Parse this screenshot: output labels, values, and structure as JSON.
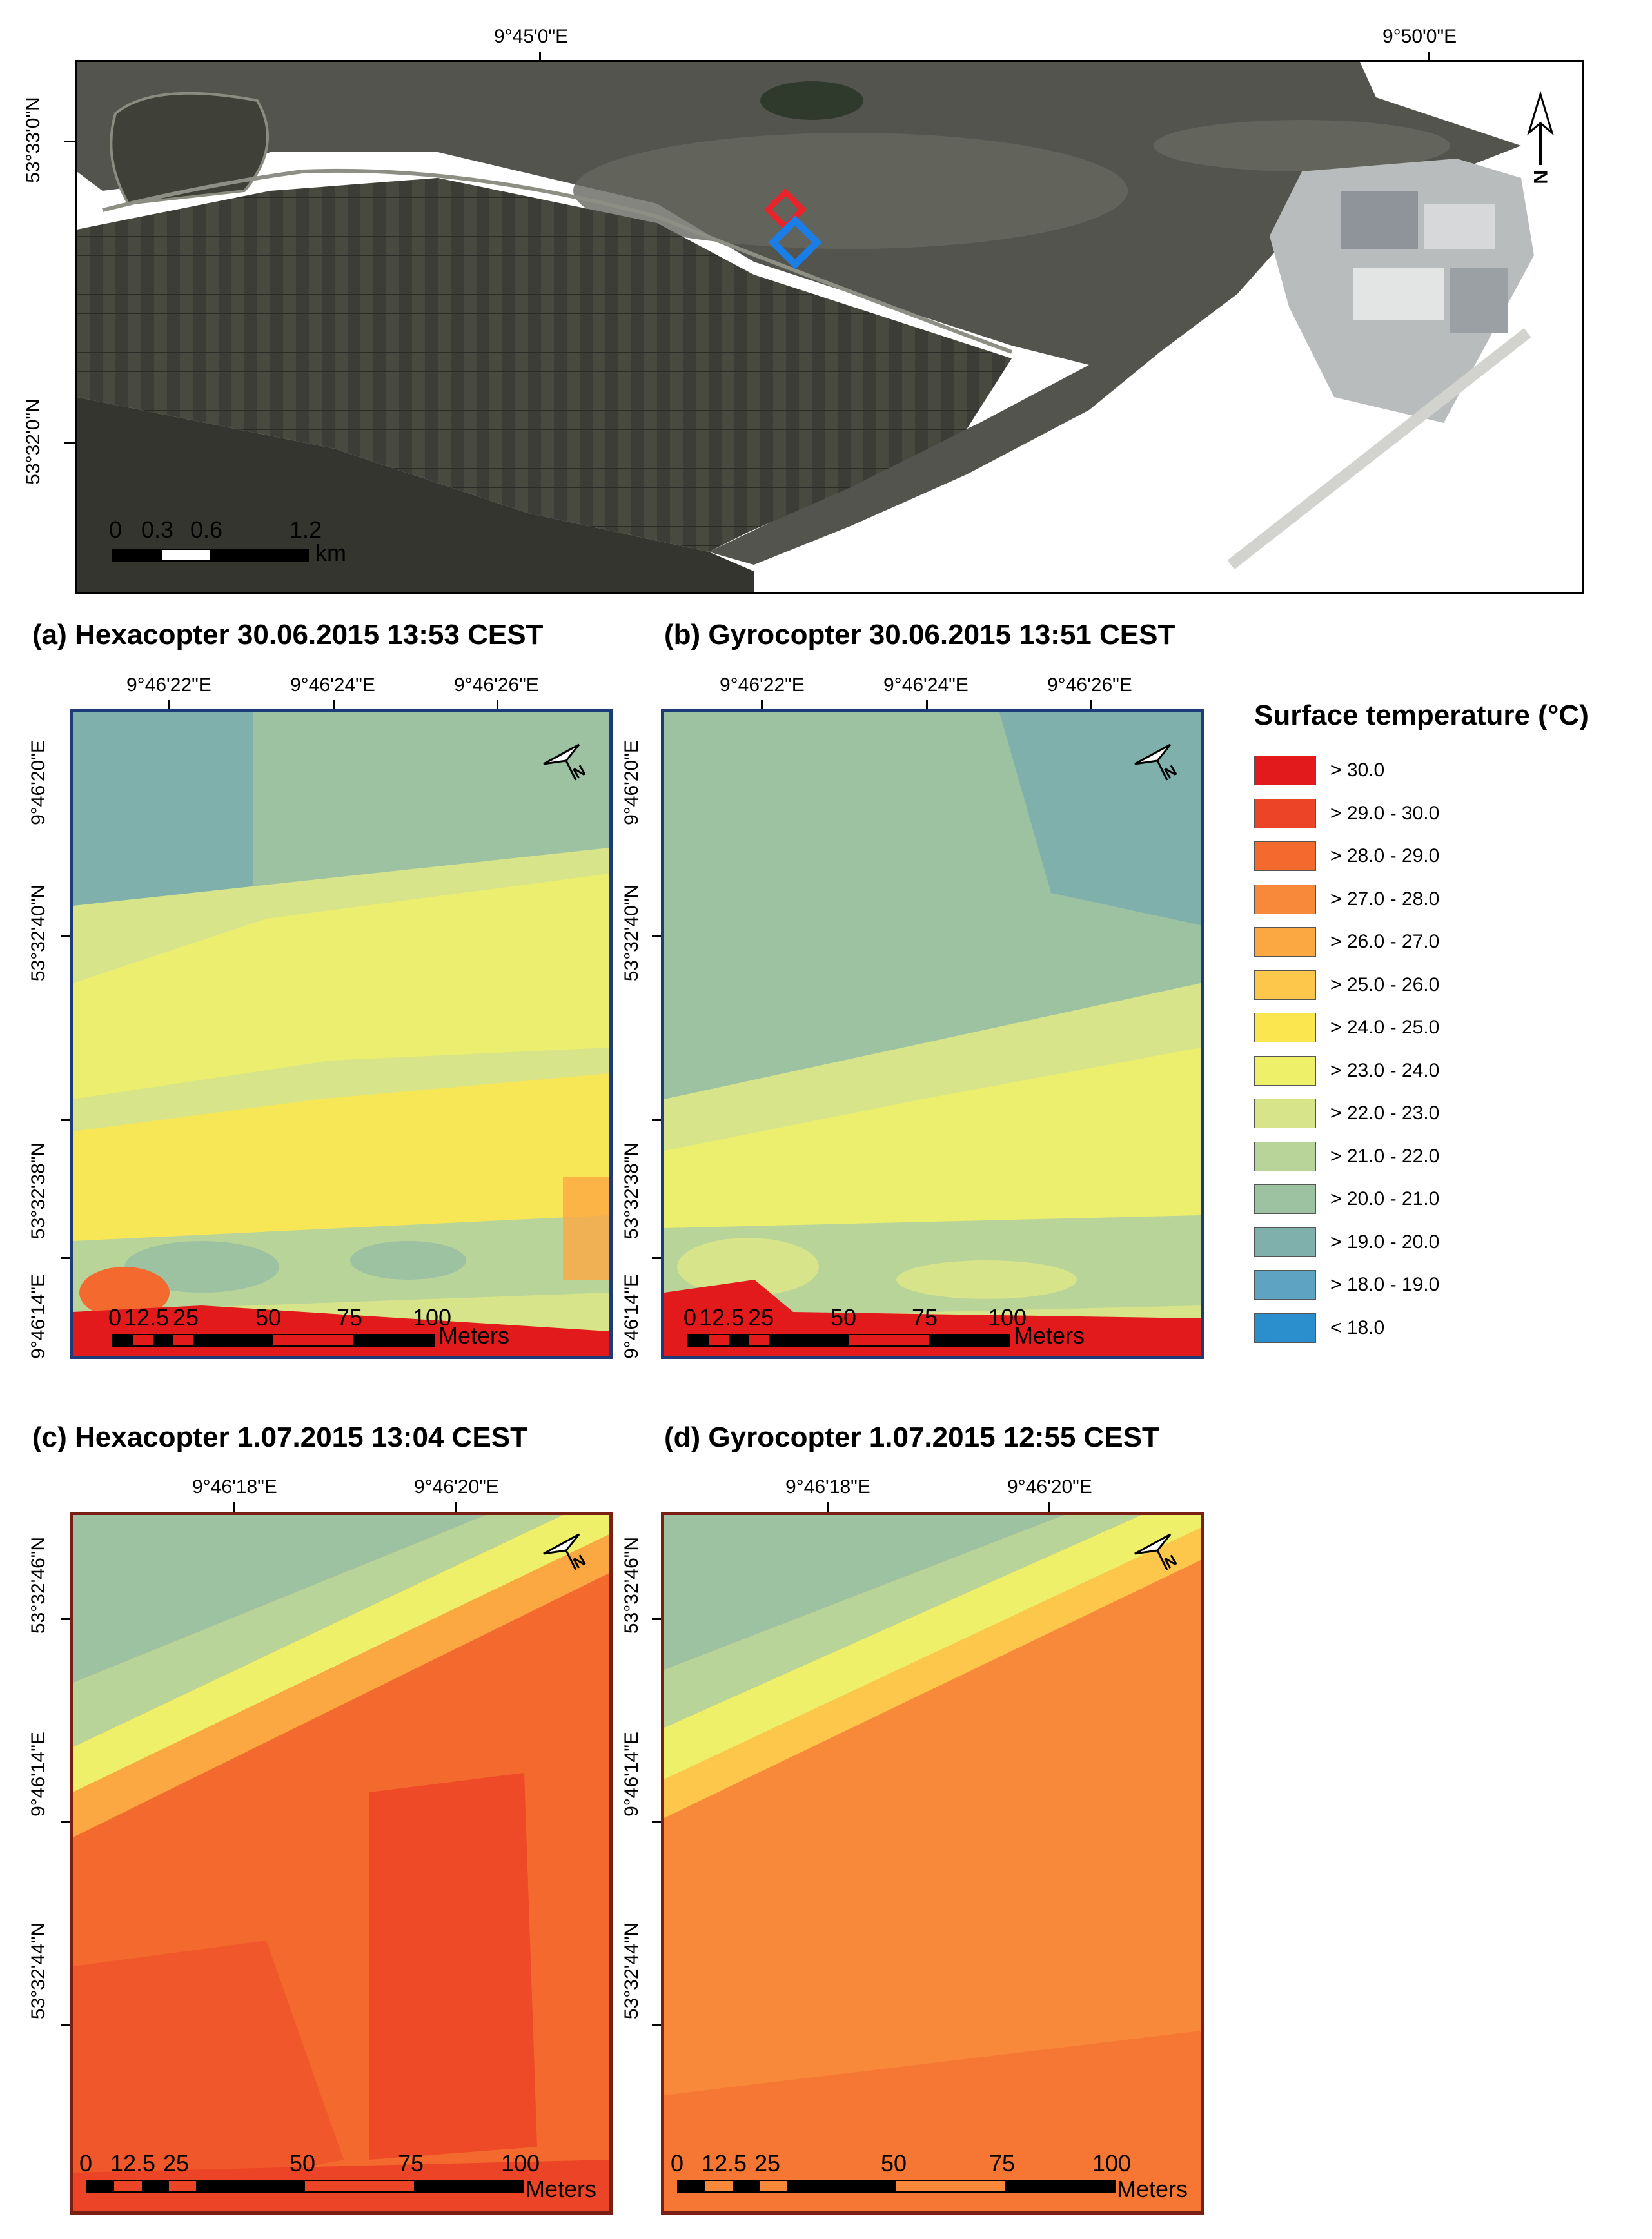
{
  "overview": {
    "top_lon_labels": [
      "9°45'0\"E",
      "9°50'0\"E"
    ],
    "left_lat_labels": [
      "53°33'0\"N",
      "53°32'0\"N"
    ],
    "scalebar": {
      "labels": [
        "0",
        "0.3",
        "0.6",
        "1.2"
      ],
      "unit": "km"
    },
    "roi_colors": {
      "hexacopter": "#e8232a",
      "gyrocopter": "#1a7ee6"
    }
  },
  "panels": {
    "a": {
      "title": "(a) Hexacopter 30.06.2015 13:53 CEST",
      "top_labels": [
        "9°46'22\"E",
        "9°46'24\"E",
        "9°46'26\"E"
      ],
      "left_labels": [
        "9°46'20\"E",
        "53°32'40\"N",
        "53°32'38\"N",
        "9°46'14\"E"
      ],
      "scalebar": {
        "labels": [
          "0",
          "12.5",
          "25",
          "50",
          "75",
          "100"
        ],
        "unit": "Meters"
      },
      "frame_color": "#1d3b78"
    },
    "b": {
      "title": "(b) Gyrocopter 30.06.2015 13:51 CEST",
      "top_labels": [
        "9°46'22\"E",
        "9°46'24\"E",
        "9°46'26\"E"
      ],
      "left_labels": [
        "9°46'20\"E",
        "53°32'40\"N",
        "53°32'38\"N",
        "9°46'14\"E"
      ],
      "scalebar": {
        "labels": [
          "0",
          "12.5",
          "25",
          "50",
          "75",
          "100"
        ],
        "unit": "Meters"
      },
      "frame_color": "#1d3b78"
    },
    "c": {
      "title": "(c) Hexacopter 1.07.2015 13:04 CEST",
      "top_labels": [
        "9°46'18\"E",
        "9°46'20\"E"
      ],
      "left_labels": [
        "53°32'46\"N",
        "9°46'14\"E",
        "53°32'44\"N"
      ],
      "scalebar": {
        "labels": [
          "0",
          "12.5",
          "25",
          "50",
          "75",
          "100"
        ],
        "unit": "Meters"
      },
      "frame_color": "#7a1f14"
    },
    "d": {
      "title": "(d) Gyrocopter 1.07.2015 12:55 CEST",
      "top_labels": [
        "9°46'18\"E",
        "9°46'20\"E"
      ],
      "left_labels": [
        "53°32'46\"N",
        "9°46'14\"E",
        "53°32'44\"N"
      ],
      "scalebar": {
        "labels": [
          "0",
          "12.5",
          "25",
          "50",
          "75",
          "100"
        ],
        "unit": "Meters"
      },
      "frame_color": "#7a1f14"
    }
  },
  "legend": {
    "title": "Surface temperature (°C)",
    "items": [
      {
        "label": "> 30.0",
        "color": "#e31a1c"
      },
      {
        "label": "> 29.0 - 30.0",
        "color": "#ec4426"
      },
      {
        "label": "> 28.0 - 29.0",
        "color": "#f46a2e"
      },
      {
        "label": "> 27.0 - 28.0",
        "color": "#f8883a"
      },
      {
        "label": "> 26.0 - 27.0",
        "color": "#fca842"
      },
      {
        "label": "> 25.0 - 26.0",
        "color": "#fdc74c"
      },
      {
        "label": "> 24.0 - 25.0",
        "color": "#fbe64f"
      },
      {
        "label": "> 23.0 - 24.0",
        "color": "#eef06a"
      },
      {
        "label": "> 22.0 - 23.0",
        "color": "#d7e48a"
      },
      {
        "label": "> 21.0 - 22.0",
        "color": "#b8d498"
      },
      {
        "label": "> 20.0 - 21.0",
        "color": "#9dc2a2"
      },
      {
        "label": "> 19.0 - 20.0",
        "color": "#7fb0ac"
      },
      {
        "label": "> 18.0 - 19.0",
        "color": "#5fa3c2"
      },
      {
        "label": "< 18.0",
        "color": "#2c8fcd"
      }
    ]
  }
}
